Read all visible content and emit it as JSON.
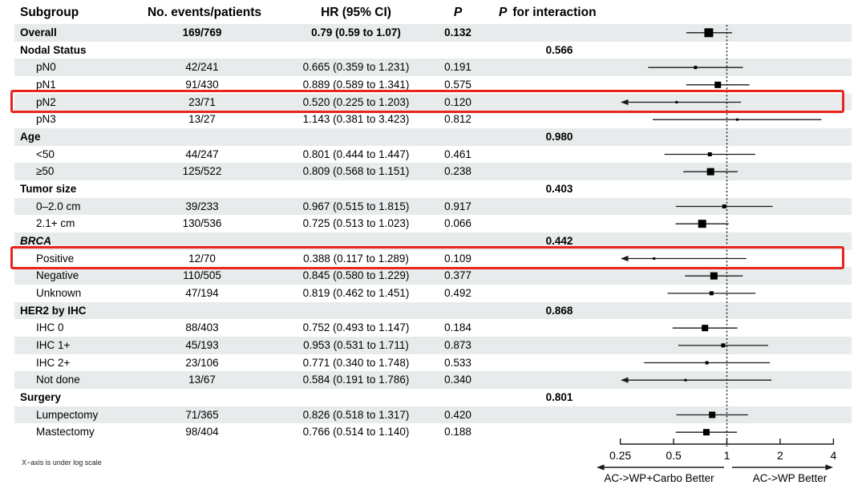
{
  "header": {
    "subgroup": "Subgroup",
    "events": "No. events/patients",
    "hr": "HR (95% CI)",
    "p": "P",
    "p_interaction_p": "P",
    "p_interaction_rest": "for interaction"
  },
  "footer": {
    "footnote": "X−axis is under log scale",
    "left_better": "AC->WP+Carbo Better",
    "right_better": "AC->WP Better"
  },
  "colors": {
    "stripe": "#e7ebec",
    "highlight_border": "#e8251d",
    "ink": "#1a1a1a",
    "marker": "#000000"
  },
  "chart_data": {
    "type": "scatter",
    "variant": "forest-plot",
    "title": "",
    "xlabel": "",
    "x_scale": "log",
    "xlim": [
      0.25,
      4
    ],
    "x_ticks": [
      0.25,
      0.5,
      1,
      2,
      4
    ],
    "x_tick_labels": [
      "0.25",
      "0.5",
      "1",
      "2",
      "4"
    ],
    "reference_line": 1,
    "rows": [
      {
        "label": "Overall",
        "type": "overall",
        "events": "169/769",
        "hr_text": "0.79 (0.59 to 1.07)",
        "p": "0.132",
        "p_interaction": "",
        "hr": 0.79,
        "lo": 0.59,
        "hi": 1.07,
        "marker": 11,
        "highlight": false
      },
      {
        "label": "Nodal Status",
        "type": "group",
        "p_interaction": "0.566"
      },
      {
        "label": "pN0",
        "type": "sub",
        "events": "42/241",
        "hr_text": "0.665 (0.359 to 1.231)",
        "p": "0.191",
        "hr": 0.665,
        "lo": 0.359,
        "hi": 1.231,
        "marker": 4,
        "highlight": false
      },
      {
        "label": "pN1",
        "type": "sub",
        "events": "91/430",
        "hr_text": "0.889 (0.589 to 1.341)",
        "p": "0.575",
        "hr": 0.889,
        "lo": 0.589,
        "hi": 1.341,
        "marker": 8,
        "highlight": false
      },
      {
        "label": "pN2",
        "type": "sub",
        "events": "23/71",
        "hr_text": "0.520 (0.225 to 1.203)",
        "p": "0.120",
        "hr": 0.52,
        "lo": 0.225,
        "hi": 1.203,
        "marker": 3,
        "highlight": true
      },
      {
        "label": "pN3",
        "type": "sub",
        "events": "13/27",
        "hr_text": "1.143 (0.381 to 3.423)",
        "p": "0.812",
        "hr": 1.143,
        "lo": 0.381,
        "hi": 3.423,
        "marker": 3,
        "highlight": false
      },
      {
        "label": "Age",
        "type": "group",
        "p_interaction": "0.980"
      },
      {
        "label": "<50",
        "type": "sub",
        "events": "44/247",
        "hr_text": "0.801 (0.444 to 1.447)",
        "p": "0.461",
        "hr": 0.801,
        "lo": 0.444,
        "hi": 1.447,
        "marker": 5,
        "highlight": false
      },
      {
        "label": "≥50",
        "type": "sub",
        "events": "125/522",
        "hr_text": "0.809 (0.568 to 1.151)",
        "p": "0.238",
        "hr": 0.809,
        "lo": 0.568,
        "hi": 1.151,
        "marker": 9,
        "highlight": false
      },
      {
        "label": "Tumor size",
        "type": "group",
        "p_interaction": "0.403"
      },
      {
        "label": "0–2.0 cm",
        "type": "sub",
        "events": "39/233",
        "hr_text": "0.967 (0.515 to 1.815)",
        "p": "0.917",
        "hr": 0.967,
        "lo": 0.515,
        "hi": 1.815,
        "marker": 5,
        "highlight": false
      },
      {
        "label": "2.1+ cm",
        "type": "sub",
        "events": "130/536",
        "hr_text": "0.725 (0.513 to 1.023)",
        "p": "0.066",
        "hr": 0.725,
        "lo": 0.513,
        "hi": 1.023,
        "marker": 10,
        "highlight": false
      },
      {
        "label": "BRCA",
        "type": "group",
        "italic": true,
        "p_interaction": "0.442"
      },
      {
        "label": "Positive",
        "type": "sub",
        "events": "12/70",
        "hr_text": "0.388 (0.117 to 1.289)",
        "p": "0.109",
        "hr": 0.388,
        "lo": 0.117,
        "hi": 1.289,
        "marker": 3,
        "highlight": true
      },
      {
        "label": "Negative",
        "type": "sub",
        "events": "110/505",
        "hr_text": "0.845 (0.580 to 1.229)",
        "p": "0.377",
        "hr": 0.845,
        "lo": 0.58,
        "hi": 1.229,
        "marker": 9,
        "highlight": false
      },
      {
        "label": "Unknown",
        "type": "sub",
        "events": "47/194",
        "hr_text": "0.819 (0.462 to 1.451)",
        "p": "0.492",
        "hr": 0.819,
        "lo": 0.462,
        "hi": 1.451,
        "marker": 5,
        "highlight": false
      },
      {
        "label": "HER2 by IHC",
        "type": "group",
        "p_interaction": "0.868"
      },
      {
        "label": "IHC 0",
        "type": "sub",
        "events": "88/403",
        "hr_text": "0.752 (0.493 to 1.147)",
        "p": "0.184",
        "hr": 0.752,
        "lo": 0.493,
        "hi": 1.147,
        "marker": 8,
        "highlight": false
      },
      {
        "label": "IHC 1+",
        "type": "sub",
        "events": "45/193",
        "hr_text": "0.953 (0.531 to 1.711)",
        "p": "0.873",
        "hr": 0.953,
        "lo": 0.531,
        "hi": 1.711,
        "marker": 5,
        "highlight": false
      },
      {
        "label": "IHC 2+",
        "type": "sub",
        "events": "23/106",
        "hr_text": "0.771 (0.340 to 1.748)",
        "p": "0.533",
        "hr": 0.771,
        "lo": 0.34,
        "hi": 1.748,
        "marker": 4,
        "highlight": false
      },
      {
        "label": "Not done",
        "type": "sub",
        "events": "13/67",
        "hr_text": "0.584 (0.191 to 1.786)",
        "p": "0.340",
        "hr": 0.584,
        "lo": 0.191,
        "hi": 1.786,
        "marker": 3,
        "highlight": false
      },
      {
        "label": "Surgery",
        "type": "group",
        "p_interaction": "0.801"
      },
      {
        "label": "Lumpectomy",
        "type": "sub",
        "events": "71/365",
        "hr_text": "0.826 (0.518 to 1.317)",
        "p": "0.420",
        "hr": 0.826,
        "lo": 0.518,
        "hi": 1.317,
        "marker": 8,
        "highlight": false
      },
      {
        "label": "Mastectomy",
        "type": "sub",
        "events": "98/404",
        "hr_text": "0.766 (0.514 to 1.140)",
        "p": "0.188",
        "hr": 0.766,
        "lo": 0.514,
        "hi": 1.14,
        "marker": 8,
        "highlight": false
      }
    ]
  }
}
